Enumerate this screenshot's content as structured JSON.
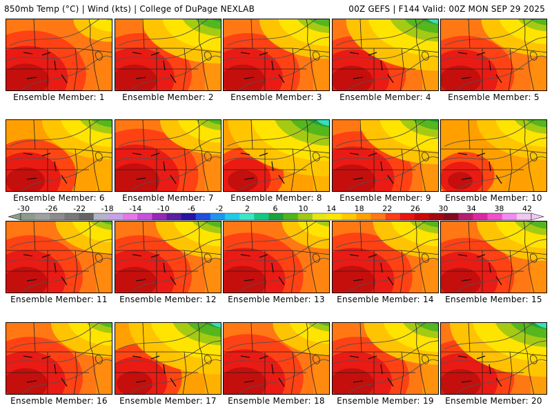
{
  "header": {
    "left": "850mb Temp (°C) | Wind (kts) | College of DuPage NEXLAB",
    "right": "00Z GEFS | F144 Valid: 00Z MON SEP 29 2025"
  },
  "panels": [
    {
      "label": "Ensemble Member: 1",
      "warmth": 0.85,
      "cool_ne": 0.25
    },
    {
      "label": "Ensemble Member: 2",
      "warmth": 0.8,
      "cool_ne": 0.7
    },
    {
      "label": "Ensemble Member: 3",
      "warmth": 0.8,
      "cool_ne": 0.6
    },
    {
      "label": "Ensemble Member: 4",
      "warmth": 0.75,
      "cool_ne": 0.85
    },
    {
      "label": "Ensemble Member: 5",
      "warmth": 0.75,
      "cool_ne": 0.55
    },
    {
      "label": "Ensemble Member: 6",
      "warmth": 0.7,
      "cool_ne": 0.6
    },
    {
      "label": "Ensemble Member: 7",
      "warmth": 0.9,
      "cool_ne": 0.5
    },
    {
      "label": "Ensemble Member: 8",
      "warmth": 0.55,
      "cool_ne": 0.95
    },
    {
      "label": "Ensemble Member: 9",
      "warmth": 0.85,
      "cool_ne": 0.7
    },
    {
      "label": "Ensemble Member: 10",
      "warmth": 0.45,
      "cool_ne": 0.6
    },
    {
      "label": "Ensemble Member: 11",
      "warmth": 0.8,
      "cool_ne": 0.45
    },
    {
      "label": "Ensemble Member: 12",
      "warmth": 0.8,
      "cool_ne": 0.55
    },
    {
      "label": "Ensemble Member: 13",
      "warmth": 0.85,
      "cool_ne": 0.35
    },
    {
      "label": "Ensemble Member: 14",
      "warmth": 0.85,
      "cool_ne": 0.55
    },
    {
      "label": "Ensemble Member: 15",
      "warmth": 0.75,
      "cool_ne": 0.6
    },
    {
      "label": "Ensemble Member: 16",
      "warmth": 0.8,
      "cool_ne": 0.5
    },
    {
      "label": "Ensemble Member: 17",
      "warmth": 0.65,
      "cool_ne": 0.85
    },
    {
      "label": "Ensemble Member: 18",
      "warmth": 0.85,
      "cool_ne": 0.45
    },
    {
      "label": "Ensemble Member: 19",
      "warmth": 0.8,
      "cool_ne": 0.65
    },
    {
      "label": "Ensemble Member: 20",
      "warmth": 0.75,
      "cool_ne": 0.9
    }
  ],
  "colorbar": {
    "ticks": [
      "-30",
      "-26",
      "-22",
      "-18",
      "-14",
      "-10",
      "-6",
      "-2",
      "2",
      "6",
      "10",
      "14",
      "18",
      "22",
      "26",
      "30",
      "34",
      "38",
      "42"
    ],
    "colors": [
      "#8c9c8c",
      "#a0a0a0",
      "#8c8c8c",
      "#787878",
      "#646464",
      "#b4b4c8",
      "#c8a0e6",
      "#e678e6",
      "#c850dc",
      "#9628b4",
      "#5a1ea0",
      "#2814a0",
      "#1e50dc",
      "#1e96f0",
      "#1ecce6",
      "#3ce6c8",
      "#14c882",
      "#1ea03c",
      "#50b41e",
      "#a0c814",
      "#e6e614",
      "#ffe600",
      "#ffc800",
      "#ffa000",
      "#ff7814",
      "#ff3c14",
      "#e61414",
      "#c80a0a",
      "#a00a14",
      "#820a1e",
      "#b41e6e",
      "#dc28a0",
      "#f050c8",
      "#f08cf0",
      "#f0c8f0"
    ]
  },
  "field_colors": {
    "hot": "#b40a0a",
    "red": "#e61414",
    "orange_red": "#ff3c14",
    "orange": "#ff7814",
    "amber": "#ffa000",
    "gold": "#ffc800",
    "yellow": "#ffe600",
    "lime": "#a0c814",
    "green": "#50b41e",
    "dkgreen": "#1ea03c",
    "teal": "#14c882",
    "cyan": "#3ce6c8",
    "contour": "#505050",
    "border": "#202020"
  }
}
